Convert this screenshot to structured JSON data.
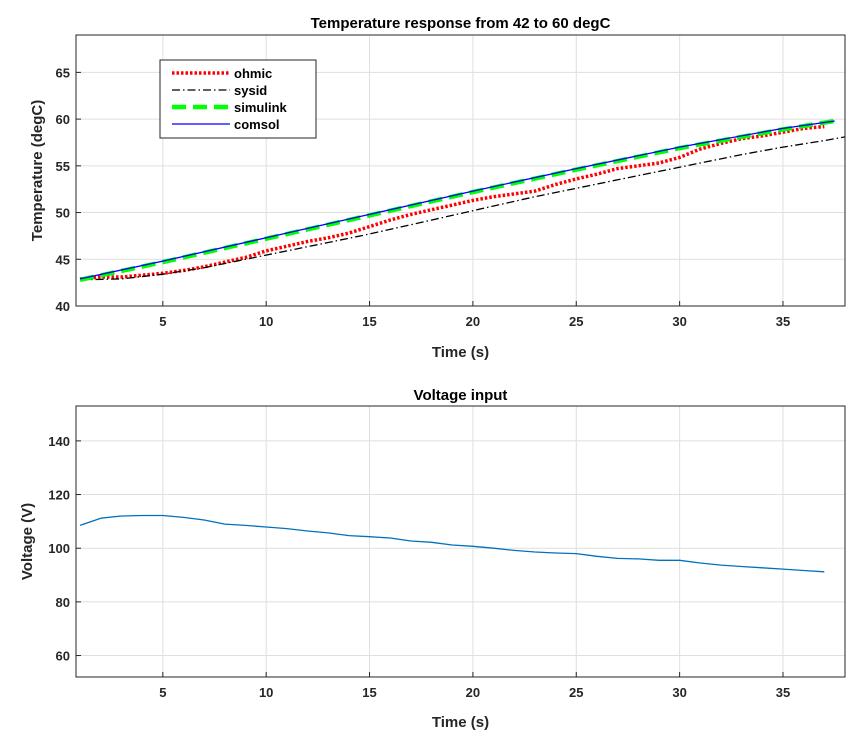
{
  "chart_data": [
    {
      "type": "line",
      "title": "Temperature response from 42 to 60 degC",
      "xlabel": "Time (s)",
      "ylabel": "Temperature (degC)",
      "xlim": [
        0.8,
        38
      ],
      "ylim": [
        40,
        69
      ],
      "xticks": [
        5,
        10,
        15,
        20,
        25,
        30,
        35
      ],
      "yticks": [
        40,
        45,
        50,
        55,
        60,
        65
      ],
      "grid": true,
      "legend_position": "top-left",
      "series": [
        {
          "name": "ohmic",
          "color": "#ff0000",
          "style": "dotted",
          "x": [
            1,
            2,
            3,
            4,
            5,
            6,
            7,
            8,
            9,
            10,
            11,
            12,
            13,
            14,
            15,
            16,
            17,
            18,
            19,
            20,
            21,
            22,
            23,
            24,
            25,
            26,
            27,
            28,
            29,
            30,
            31,
            32,
            33,
            34,
            35,
            36,
            37
          ],
          "y": [
            42.9,
            43.1,
            43.1,
            43.3,
            43.5,
            43.8,
            44.2,
            44.7,
            45.2,
            45.9,
            46.4,
            46.9,
            47.3,
            47.8,
            48.5,
            49.2,
            49.8,
            50.3,
            50.8,
            51.3,
            51.7,
            52.0,
            52.3,
            53.0,
            53.6,
            54.1,
            54.7,
            55.0,
            55.3,
            55.9,
            56.8,
            57.4,
            57.9,
            58.2,
            58.6,
            59.0,
            59.2
          ]
        },
        {
          "name": "sysid",
          "color": "#000000",
          "style": "dashdot",
          "x": [
            1,
            3,
            5,
            7,
            9,
            11,
            13,
            15,
            17,
            19,
            21,
            23,
            25,
            27,
            29,
            31,
            33,
            35,
            37,
            38
          ],
          "y": [
            42.8,
            42.9,
            43.4,
            44.1,
            45.0,
            45.9,
            46.8,
            47.7,
            48.7,
            49.7,
            50.7,
            51.7,
            52.6,
            53.5,
            54.4,
            55.3,
            56.2,
            57.0,
            57.7,
            58.1
          ]
        },
        {
          "name": "simulink",
          "color": "#00ff00",
          "style": "dashed",
          "x": [
            1,
            5,
            10,
            15,
            20,
            25,
            30,
            35,
            37.5
          ],
          "y": [
            42.8,
            44.7,
            47.2,
            49.7,
            52.2,
            54.6,
            56.9,
            58.9,
            59.8
          ]
        },
        {
          "name": "comsol",
          "color": "#0000ff",
          "style": "solid",
          "x": [
            1,
            5,
            10,
            15,
            20,
            25,
            30,
            35,
            37.5
          ],
          "y": [
            42.9,
            44.8,
            47.3,
            49.8,
            52.3,
            54.7,
            57.0,
            59.0,
            59.8
          ]
        }
      ]
    },
    {
      "type": "line",
      "title": "Voltage input",
      "xlabel": "Time (s)",
      "ylabel": "Voltage (V)",
      "xlim": [
        0.8,
        38
      ],
      "ylim": [
        52,
        153
      ],
      "xticks": [
        5,
        10,
        15,
        20,
        25,
        30,
        35
      ],
      "yticks": [
        60,
        80,
        100,
        120,
        140
      ],
      "grid": true,
      "series": [
        {
          "color": "#0072bd",
          "style": "solid",
          "x": [
            1,
            2,
            3,
            4,
            5,
            6,
            7,
            8,
            9,
            10,
            11,
            12,
            13,
            14,
            15,
            16,
            17,
            18,
            19,
            20,
            21,
            22,
            23,
            24,
            25,
            26,
            27,
            28,
            29,
            30,
            31,
            32,
            33,
            34,
            35,
            36,
            37
          ],
          "y": [
            108.5,
            111.2,
            112.0,
            112.2,
            112.2,
            111.5,
            110.5,
            109.0,
            108.5,
            107.9,
            107.3,
            106.4,
            105.7,
            104.7,
            104.3,
            103.8,
            102.7,
            102.2,
            101.2,
            100.7,
            100.0,
            99.2,
            98.6,
            98.2,
            98.0,
            97.0,
            96.2,
            96.0,
            95.5,
            95.5,
            94.5,
            93.7,
            93.2,
            92.7,
            92.2,
            91.7,
            91.2
          ]
        }
      ]
    }
  ]
}
